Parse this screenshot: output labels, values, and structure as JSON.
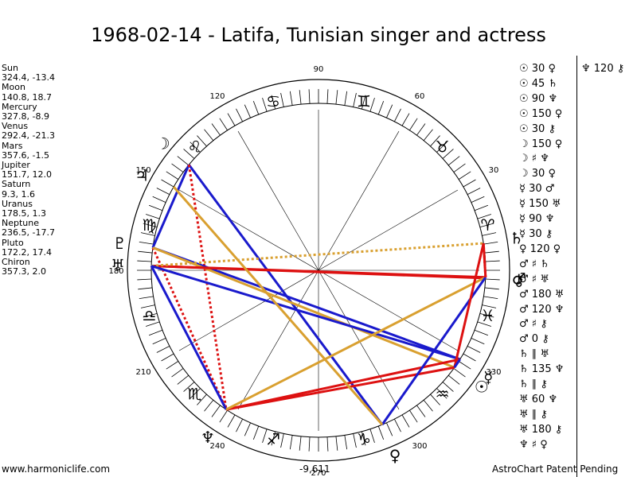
{
  "title": "1968-02-14 - Latifa, Tunisian singer and actress",
  "planets": [
    {
      "name": "Sun",
      "coords": "324.4, -13.4"
    },
    {
      "name": "Moon",
      "coords": "140.8, 18.7"
    },
    {
      "name": "Mercury",
      "coords": "327.8, -8.9"
    },
    {
      "name": "Venus",
      "coords": "292.4, -21.3"
    },
    {
      "name": "Mars",
      "coords": "357.6, -1.5"
    },
    {
      "name": "Jupiter",
      "coords": "151.7, 12.0"
    },
    {
      "name": "Saturn",
      "coords": "9.3, 1.6"
    },
    {
      "name": "Uranus",
      "coords": "178.5, 1.3"
    },
    {
      "name": "Neptune",
      "coords": "236.5, -17.7"
    },
    {
      "name": "Pluto",
      "coords": "172.2, 17.4"
    },
    {
      "name": "Chiron",
      "coords": "357.3, 2.0"
    }
  ],
  "degree_labels": [
    {
      "text": "90",
      "deg": 90
    },
    {
      "text": "60",
      "deg": 60
    },
    {
      "text": "30",
      "deg": 30
    },
    {
      "text": "120",
      "deg": 120
    },
    {
      "text": "150",
      "deg": 150
    },
    {
      "text": "180",
      "deg": 180
    },
    {
      "text": "210",
      "deg": 210
    },
    {
      "text": "240",
      "deg": 240
    },
    {
      "text": "270",
      "deg": 270
    },
    {
      "text": "300",
      "deg": 300
    },
    {
      "text": "330",
      "deg": 330
    }
  ],
  "zodiac_signs": [
    {
      "glyph": "♈",
      "deg": 15
    },
    {
      "glyph": "♉",
      "deg": 45
    },
    {
      "glyph": "♊",
      "deg": 75
    },
    {
      "glyph": "♋",
      "deg": 105
    },
    {
      "glyph": "♌",
      "deg": 135
    },
    {
      "glyph": "♍",
      "deg": 165
    },
    {
      "glyph": "♎",
      "deg": 195
    },
    {
      "glyph": "♏",
      "deg": 225
    },
    {
      "glyph": "♐",
      "deg": 255
    },
    {
      "glyph": "♑",
      "deg": 285
    },
    {
      "glyph": "♒",
      "deg": 315
    },
    {
      "glyph": "♓",
      "deg": 345
    }
  ],
  "planet_glyphs": [
    {
      "glyph": "☉",
      "deg": 324.4,
      "color": "#000000"
    },
    {
      "glyph": "☽",
      "deg": 140.8,
      "color": "#000000"
    },
    {
      "glyph": "☿",
      "deg": 327.8,
      "color": "#000000"
    },
    {
      "glyph": "♀",
      "deg": 292.4,
      "color": "#000000"
    },
    {
      "glyph": "♂",
      "deg": 357.6,
      "color": "#000000"
    },
    {
      "glyph": "♃",
      "deg": 151.7,
      "color": "#000000"
    },
    {
      "glyph": "♄",
      "deg": 9.3,
      "color": "#000000"
    },
    {
      "glyph": "♅",
      "deg": 178.5,
      "color": "#000000"
    },
    {
      "glyph": "♆",
      "deg": 236.5,
      "color": "#000000"
    },
    {
      "glyph": "♇",
      "deg": 172.2,
      "color": "#000000"
    },
    {
      "glyph": "⚷",
      "deg": 357.3,
      "color": "#000000"
    }
  ],
  "aspect_lines": [
    {
      "from": 140.8,
      "to": 292.4,
      "color": "#1a1acc",
      "style": "solid"
    },
    {
      "from": 140.8,
      "to": 172.2,
      "color": "#1a1acc",
      "style": "solid"
    },
    {
      "from": 140.8,
      "to": 236.5,
      "color": "#dd1111",
      "style": "dotted"
    },
    {
      "from": 172.2,
      "to": 327.8,
      "color": "#1a1acc",
      "style": "solid"
    },
    {
      "from": 172.2,
      "to": 236.5,
      "color": "#dd1111",
      "style": "dotted"
    },
    {
      "from": 172.2,
      "to": 324.4,
      "color": "#d9a030",
      "style": "solid"
    },
    {
      "from": 178.5,
      "to": 357.6,
      "color": "#dd1111",
      "style": "solid"
    },
    {
      "from": 178.5,
      "to": 357.3,
      "color": "#dd1111",
      "style": "solid"
    },
    {
      "from": 178.5,
      "to": 9.3,
      "color": "#d9a030",
      "style": "dotted"
    },
    {
      "from": 178.5,
      "to": 327.8,
      "color": "#1a1acc",
      "style": "solid"
    },
    {
      "from": 178.5,
      "to": 236.5,
      "color": "#1a1acc",
      "style": "solid"
    },
    {
      "from": 236.5,
      "to": 324.4,
      "color": "#dd1111",
      "style": "solid"
    },
    {
      "from": 236.5,
      "to": 327.8,
      "color": "#dd1111",
      "style": "solid"
    },
    {
      "from": 236.5,
      "to": 357.6,
      "color": "#d9a030",
      "style": "solid"
    },
    {
      "from": 292.4,
      "to": 357.6,
      "color": "#1a1acc",
      "style": "solid"
    },
    {
      "from": 292.4,
      "to": 150.0,
      "color": "#d9a030",
      "style": "solid"
    },
    {
      "from": 9.3,
      "to": 324.4,
      "color": "#dd1111",
      "style": "solid"
    },
    {
      "from": 9.3,
      "to": 357.6,
      "color": "#dd1111",
      "style": "solid"
    },
    {
      "from": 357.6,
      "to": 9.3,
      "color": "#dd1111",
      "style": "dotted"
    },
    {
      "from": 324.4,
      "to": 327.8,
      "color": "#1a1acc",
      "style": "solid"
    }
  ],
  "aspect_table": [
    "☉ 30 ♀",
    "☉ 45 ♄",
    "☉ 90 ♆",
    "☉ 150 ♀",
    "☉ 30 ⚷",
    "☽ 150 ♀",
    "☽ ♯ ♆",
    "☽ 30 ♀",
    "☿ 30 ♂",
    "☿ 150 ♅",
    "☿ 90 ♆",
    "☿ 30 ⚷",
    "♀ 120 ♀",
    "♂ ♯ ♄",
    "♂ ♯ ♅",
    "♂ 180 ♅",
    "♂ 120 ♆",
    "♂ ♯ ⚷",
    "♂ 0 ⚷",
    "♄ ∥ ♅",
    "♄ 135 ♆",
    "♄ ∥ ⚷",
    "♅ 60 ♆",
    "♅ ∥ ⚷",
    "♅ 180 ⚷",
    "♆ ♯ ♀"
  ],
  "aspect_table_extra": "♆ 120 ⚷",
  "bottom_value": "-9,611",
  "footer": {
    "website": "www.harmoniclife.com",
    "patent": "AstroChart Patent Pending"
  }
}
